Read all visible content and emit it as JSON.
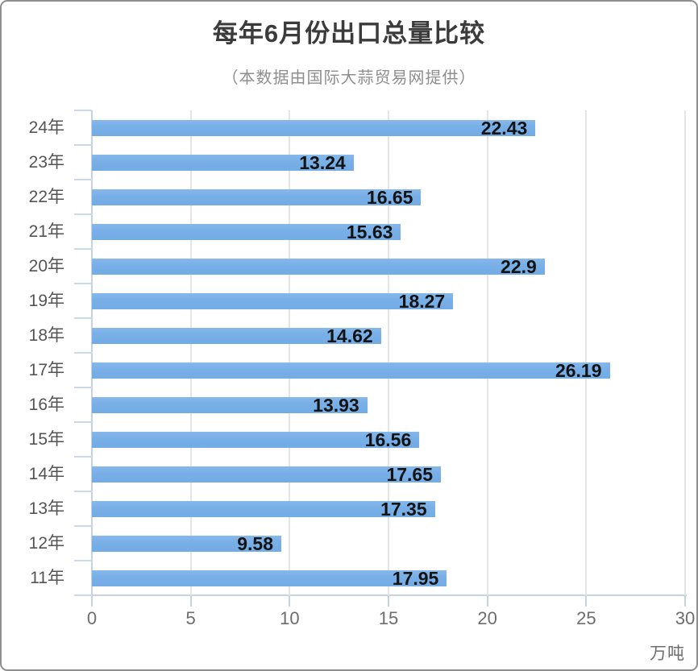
{
  "header": {
    "title": "每年6月份出口总量比较",
    "subtitle": "（本数据由国际大蒜贸易网提供）"
  },
  "chart_data": {
    "type": "bar",
    "orientation": "horizontal",
    "title": "每年6月份出口总量比较",
    "subtitle": "（本数据由国际大蒜贸易网提供）",
    "categories": [
      "24年",
      "23年",
      "22年",
      "21年",
      "20年",
      "19年",
      "18年",
      "17年",
      "16年",
      "15年",
      "14年",
      "13年",
      "12年",
      "11年"
    ],
    "values": [
      22.43,
      13.24,
      16.65,
      15.63,
      22.9,
      18.27,
      14.62,
      26.19,
      13.93,
      16.56,
      17.65,
      17.35,
      9.58,
      17.95
    ],
    "value_labels": [
      "22.43",
      "13.24",
      "16.65",
      "15.63",
      "22.9",
      "18.27",
      "14.62",
      "26.19",
      "13.93",
      "16.56",
      "17.65",
      "17.35",
      "9.58",
      "17.95"
    ],
    "x_ticks": [
      0,
      5,
      10,
      15,
      20,
      25,
      30
    ],
    "xlim": [
      0,
      30
    ],
    "x_unit_label": "万吨",
    "grid": true,
    "legend": "none",
    "bar_color": "#7cb2e8",
    "value_label_color": "#131313",
    "axis_color": "#c5d3e4",
    "gridline_color": "#e5e5e5"
  }
}
